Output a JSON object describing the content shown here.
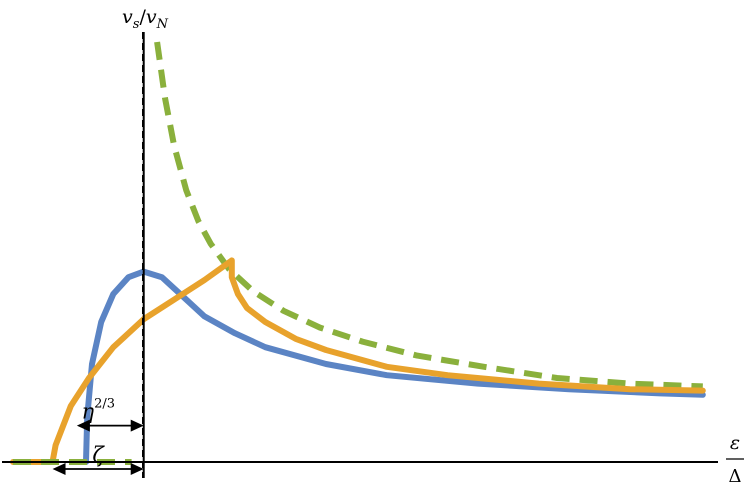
{
  "chart_data": {
    "type": "line",
    "title": "",
    "xlabel": {
      "numerator": "ε",
      "denominator": "Δ"
    },
    "ylabel": {
      "num_v": "v",
      "num_sub": "s",
      "slash": "/",
      "den_v": "v",
      "den_sub": "N"
    },
    "grid": false,
    "legend": "none",
    "xlim": [
      -2.2,
      9.4
    ],
    "ylim": [
      0,
      1.55
    ],
    "threshold_x": 0,
    "series": [
      {
        "style": "dashed",
        "color": "#8ab03c",
        "points": [
          [
            0.22,
            1.5
          ],
          [
            0.35,
            1.3
          ],
          [
            0.5,
            1.13
          ],
          [
            0.7,
            0.97
          ],
          [
            0.9,
            0.86
          ],
          [
            1.1,
            0.78
          ],
          [
            1.4,
            0.69
          ],
          [
            1.8,
            0.61
          ],
          [
            2.3,
            0.54
          ],
          [
            2.9,
            0.48
          ],
          [
            3.6,
            0.43
          ],
          [
            4.5,
            0.38
          ],
          [
            5.6,
            0.34
          ],
          [
            6.8,
            0.3
          ],
          [
            8.0,
            0.28
          ],
          [
            9.2,
            0.27
          ]
        ]
      },
      {
        "style": "solid",
        "color": "#5b84c4",
        "points": [
          [
            -0.95,
            0.0
          ],
          [
            -0.93,
            0.16
          ],
          [
            -0.85,
            0.35
          ],
          [
            -0.7,
            0.5
          ],
          [
            -0.5,
            0.6
          ],
          [
            -0.25,
            0.66
          ],
          [
            0.0,
            0.68
          ],
          [
            0.3,
            0.66
          ],
          [
            0.6,
            0.6
          ],
          [
            1.0,
            0.52
          ],
          [
            1.5,
            0.46
          ],
          [
            2.0,
            0.41
          ],
          [
            3.0,
            0.35
          ],
          [
            4.0,
            0.31
          ],
          [
            5.5,
            0.28
          ],
          [
            7.0,
            0.26
          ],
          [
            8.5,
            0.245
          ],
          [
            9.2,
            0.24
          ]
        ]
      },
      {
        "style": "solid",
        "color": "#e8a22c",
        "points": [
          [
            -2.15,
            0.0
          ],
          [
            -1.5,
            0.0
          ],
          [
            -1.45,
            0.06
          ],
          [
            -1.2,
            0.2
          ],
          [
            -0.9,
            0.3
          ],
          [
            -0.5,
            0.41
          ],
          [
            0.0,
            0.51
          ],
          [
            0.5,
            0.58
          ],
          [
            1.0,
            0.65
          ],
          [
            1.45,
            0.72
          ],
          [
            1.45,
            0.66
          ],
          [
            1.55,
            0.6
          ],
          [
            1.7,
            0.55
          ],
          [
            2.0,
            0.5
          ],
          [
            2.5,
            0.44
          ],
          [
            3.0,
            0.4
          ],
          [
            4.0,
            0.34
          ],
          [
            5.0,
            0.31
          ],
          [
            6.5,
            0.28
          ],
          [
            8.0,
            0.26
          ],
          [
            9.2,
            0.255
          ]
        ]
      },
      {
        "style": "dashed",
        "color": "#8ab03c",
        "points": [
          [
            -2.15,
            0.0
          ],
          [
            -0.2,
            0.0
          ]
        ]
      }
    ],
    "annotations": [
      {
        "label": "η",
        "sup": "2/3",
        "x_from": -1.1,
        "x_to": 0.0,
        "y": 0.13
      },
      {
        "label": "ζ",
        "x_from": -1.5,
        "x_to": 0.0,
        "y": -0.025
      }
    ]
  },
  "colors": {
    "blue": "#5b84c4",
    "orange": "#e8a22c",
    "green": "#8ab03c",
    "axis": "#000000"
  }
}
